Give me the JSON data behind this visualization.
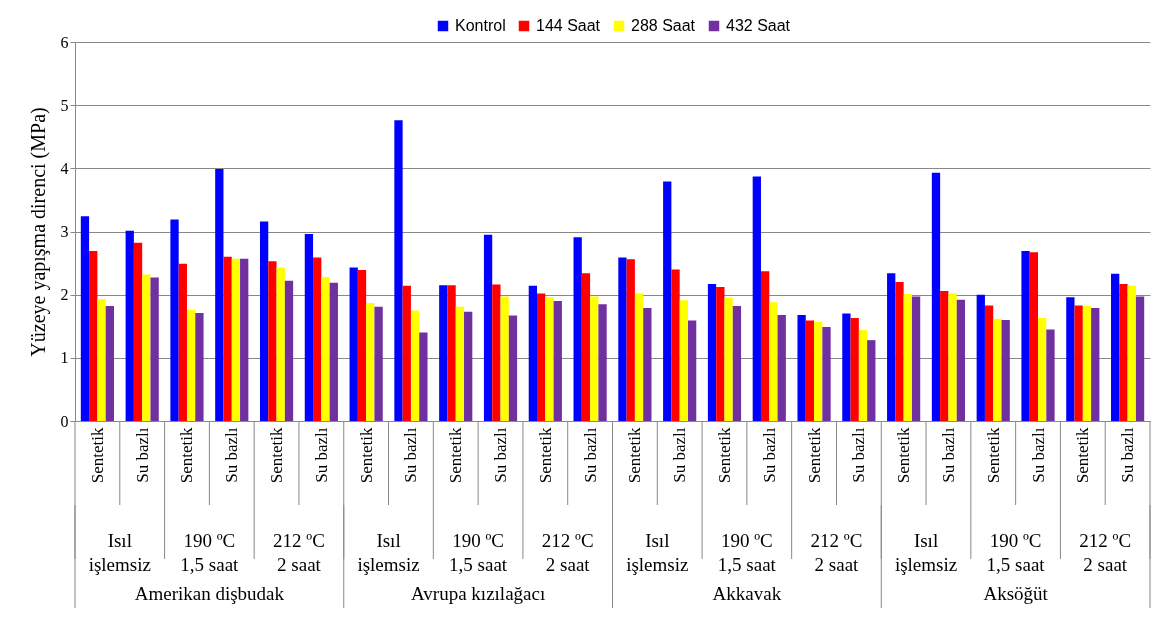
{
  "chart_data": {
    "type": "bar",
    "ylabel": "Yüzeye yapışma direnci (MPa)",
    "categories": [
      "Sentetik",
      "Su bazlı",
      "Sentetik",
      "Su bazlı",
      "Sentetik",
      "Su bazlı",
      "Sentetik",
      "Su bazlı",
      "Sentetik",
      "Su bazlı",
      "Sentetik",
      "Su bazlı",
      "Sentetik",
      "Su bazlı",
      "Sentetik",
      "Su bazlı",
      "Sentetik",
      "Su bazlı",
      "Sentetik",
      "Su bazlı",
      "Sentetik",
      "Su bazlı",
      "Sentetik",
      "Su bazlı"
    ],
    "series": [
      {
        "name": "Kontrol",
        "color": "#0000ff",
        "values": [
          3.24,
          3.01,
          3.19,
          3.99,
          3.16,
          2.96,
          2.43,
          4.76,
          2.15,
          2.95,
          2.14,
          2.91,
          2.59,
          3.79,
          2.17,
          3.87,
          1.68,
          1.7,
          2.34,
          3.93,
          2.0,
          2.69,
          1.96,
          2.33
        ]
      },
      {
        "name": "144 Saat",
        "color": "#ff0000",
        "values": [
          2.69,
          2.82,
          2.49,
          2.6,
          2.53,
          2.59,
          2.39,
          2.14,
          2.15,
          2.16,
          2.02,
          2.34,
          2.56,
          2.4,
          2.12,
          2.37,
          1.59,
          1.63,
          2.2,
          2.06,
          1.83,
          2.67,
          1.83,
          2.17
        ]
      },
      {
        "name": "288 Saat",
        "color": "#ffff00",
        "values": [
          1.93,
          2.32,
          1.76,
          2.57,
          2.43,
          2.28,
          1.87,
          1.75,
          1.81,
          1.97,
          1.96,
          1.97,
          2.02,
          1.91,
          1.95,
          1.88,
          1.57,
          1.44,
          2.01,
          2.02,
          1.62,
          1.63,
          1.82,
          2.14
        ]
      },
      {
        "name": "432 Saat",
        "color": "#7030a0",
        "values": [
          1.82,
          2.27,
          1.71,
          2.57,
          2.22,
          2.19,
          1.81,
          1.4,
          1.73,
          1.67,
          1.9,
          1.85,
          1.79,
          1.59,
          1.82,
          1.68,
          1.49,
          1.28,
          1.97,
          1.92,
          1.6,
          1.45,
          1.79,
          1.97
        ]
      }
    ],
    "ylim": [
      0,
      6
    ],
    "yticks": [
      0,
      1,
      2,
      3,
      4,
      5,
      6
    ],
    "grid": "y",
    "legend": "top",
    "annotations": [
      "Isıl\nişlemsiz",
      "190 ºC\n1,5 saat",
      "212 ºC\n2 saat",
      "Isıl\nişlemsiz",
      "190 ºC\n1,5 saat",
      "212 ºC\n2 saat",
      "Isıl\nişlemsiz",
      "190 ºC\n1,5 saat",
      "212 ºC\n2 saat",
      "Isıl\nişlemsiz",
      "190 ºC\n1,5 saat",
      "212 ºC\n2 saat",
      "Amerikan dişbudak",
      "Avrupa kızılağacı",
      "Akkavak",
      "Aksöğüt"
    ]
  }
}
